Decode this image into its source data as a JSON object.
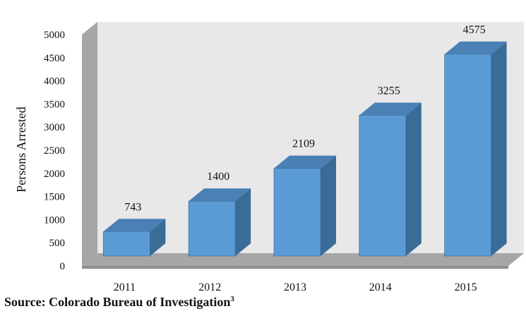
{
  "chart_data": {
    "type": "bar",
    "style": "3d-column",
    "categories": [
      "2011",
      "2012",
      "2013",
      "2014",
      "2015"
    ],
    "values": [
      743,
      1400,
      2109,
      3255,
      4575
    ],
    "data_labels": [
      "743",
      "1400",
      "2109",
      "3255",
      "4575"
    ],
    "title": "",
    "xlabel": "",
    "ylabel": "Persons Arrested",
    "ylim": [
      0,
      5000
    ],
    "yticks": [
      0,
      500,
      1000,
      1500,
      2000,
      2500,
      3000,
      3500,
      4000,
      4500,
      5000
    ],
    "grid": false,
    "legend": "none",
    "colors": {
      "bar_front": "#5b9bd5",
      "bar_side": "#3a6c98",
      "bar_top": "#4a80b4",
      "back_wall": "#e8e8e8",
      "side_wall": "#a6a6a6",
      "floor": "#a6a6a6"
    }
  },
  "source": {
    "text": "Source: Colorado Bureau of Investigation",
    "superscript": "3"
  }
}
